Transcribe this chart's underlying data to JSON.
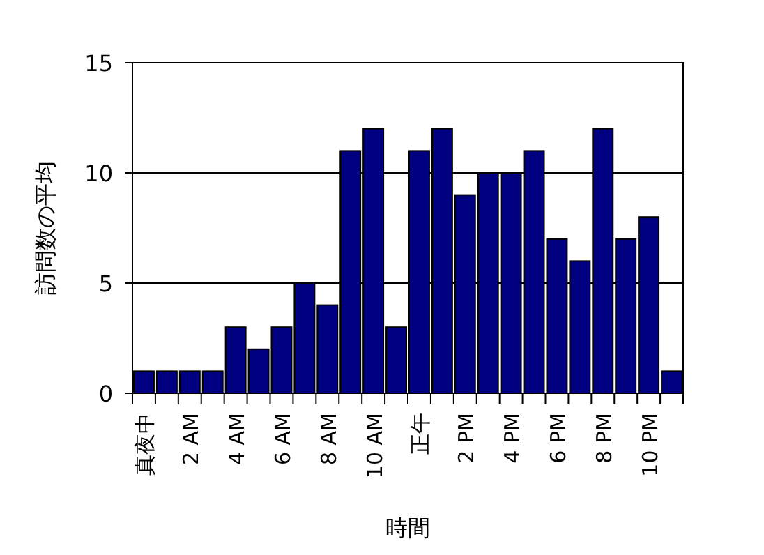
{
  "chart_data": {
    "type": "bar",
    "xlabel": "時間",
    "ylabel": "訪問数の平均",
    "categories": [
      "真夜中",
      null,
      "2 AM",
      null,
      "4 AM",
      null,
      "6 AM",
      null,
      "8 AM",
      null,
      "10 AM",
      null,
      "正午",
      null,
      "2 PM",
      null,
      "4 PM",
      null,
      "6 PM",
      null,
      "8 PM",
      null,
      "10 PM",
      null
    ],
    "values": [
      1,
      1,
      1,
      1,
      3,
      2,
      3,
      5,
      4,
      11,
      12,
      3,
      11,
      12,
      9,
      10,
      10,
      11,
      7,
      6,
      12,
      7,
      8,
      1
    ],
    "color": "#000080",
    "ylim": [
      0,
      15
    ],
    "yticks": [
      0,
      5,
      10,
      15
    ],
    "grid": "y"
  }
}
